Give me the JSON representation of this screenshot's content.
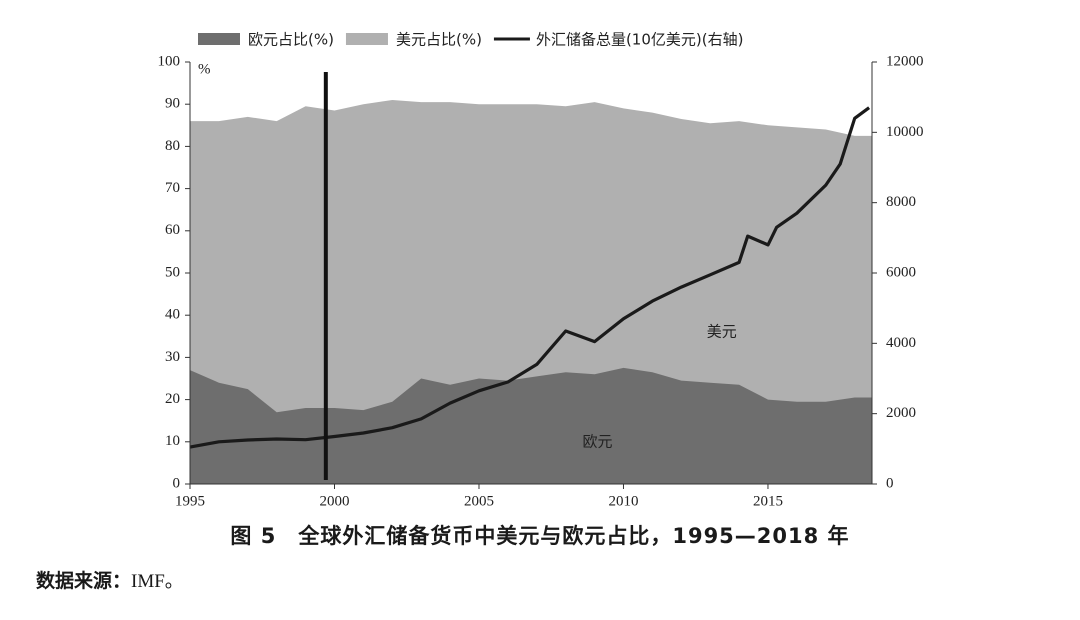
{
  "chart_data": {
    "type": "area",
    "x_ticks": [
      "1995",
      "2000",
      "2005",
      "2010",
      "2015"
    ],
    "y_left_ticks": [
      "0",
      "10",
      "20",
      "30",
      "40",
      "50",
      "60",
      "70",
      "80",
      "90",
      "100"
    ],
    "y_left_unit": "%",
    "y_left_range": [
      0,
      100
    ],
    "y_right_ticks": [
      "0",
      "2000",
      "4000",
      "6000",
      "8000",
      "10000",
      "12000"
    ],
    "y_right_range": [
      0,
      12000
    ],
    "x_range": [
      1995,
      2018.6
    ],
    "legend_position": "top",
    "annotation_vertical_line_x": 1999.7,
    "series": [
      {
        "name": "欧元占比(%)",
        "kind": "area",
        "axis": "left",
        "color": "#6e6e6e",
        "label_in_plot": "欧元",
        "label_in_plot_at": [
          2009.1,
          10
        ],
        "points": [
          [
            1995,
            27
          ],
          [
            1996,
            24
          ],
          [
            1997,
            22.5
          ],
          [
            1998,
            17
          ],
          [
            1999,
            18
          ],
          [
            2000,
            18
          ],
          [
            2001,
            17.5
          ],
          [
            2002,
            19.5
          ],
          [
            2003,
            25
          ],
          [
            2004,
            23.5
          ],
          [
            2005,
            25
          ],
          [
            2006,
            24.5
          ],
          [
            2007,
            25.5
          ],
          [
            2008,
            26.5
          ],
          [
            2009,
            26
          ],
          [
            2010,
            27.5
          ],
          [
            2011,
            26.5
          ],
          [
            2012,
            24.5
          ],
          [
            2013,
            24
          ],
          [
            2014,
            23.5
          ],
          [
            2015,
            20
          ],
          [
            2016,
            19.5
          ],
          [
            2017,
            19.5
          ],
          [
            2018,
            20.5
          ],
          [
            2018.6,
            20.5
          ]
        ]
      },
      {
        "name": "美元占比(%)",
        "kind": "stacked_area_top",
        "axis": "left",
        "color": "#b0b0b0",
        "label_in_plot": "美元",
        "label_in_plot_at": [
          2013.4,
          36
        ],
        "points": [
          [
            1995,
            86
          ],
          [
            1996,
            86
          ],
          [
            1997,
            87
          ],
          [
            1998,
            86
          ],
          [
            1999,
            89.5
          ],
          [
            2000,
            88.5
          ],
          [
            2001,
            90
          ],
          [
            2002,
            91
          ],
          [
            2003,
            90.5
          ],
          [
            2004,
            90.5
          ],
          [
            2005,
            90
          ],
          [
            2006,
            90
          ],
          [
            2007,
            90
          ],
          [
            2008,
            89.5
          ],
          [
            2009,
            90.5
          ],
          [
            2010,
            89
          ],
          [
            2011,
            88
          ],
          [
            2012,
            86.5
          ],
          [
            2013,
            85.5
          ],
          [
            2014,
            86
          ],
          [
            2015,
            85
          ],
          [
            2016,
            84.5
          ],
          [
            2017,
            84
          ],
          [
            2018,
            82.5
          ],
          [
            2018.6,
            82.5
          ]
        ]
      },
      {
        "name": "外汇储备总量(10亿美元)(右轴)",
        "kind": "line",
        "axis": "right",
        "color": "#1a1a1a",
        "points": [
          [
            1995,
            1050
          ],
          [
            1996,
            1200
          ],
          [
            1997,
            1250
          ],
          [
            1998,
            1280
          ],
          [
            1999,
            1260
          ],
          [
            2000,
            1350
          ],
          [
            2001,
            1450
          ],
          [
            2002,
            1600
          ],
          [
            2003,
            1850
          ],
          [
            2004,
            2300
          ],
          [
            2005,
            2650
          ],
          [
            2006,
            2900
          ],
          [
            2007,
            3400
          ],
          [
            2008,
            4350
          ],
          [
            2009,
            4050
          ],
          [
            2010,
            4700
          ],
          [
            2011,
            5200
          ],
          [
            2012,
            5600
          ],
          [
            2013,
            5950
          ],
          [
            2014,
            6300
          ],
          [
            2014.3,
            7050
          ],
          [
            2015,
            6800
          ],
          [
            2015.3,
            7300
          ],
          [
            2016,
            7700
          ],
          [
            2017,
            8500
          ],
          [
            2017.5,
            9100
          ],
          [
            2018,
            10400
          ],
          [
            2018.5,
            10700
          ]
        ]
      }
    ]
  },
  "caption": "图 5　全球外汇储备货币中美元与欧元占比，1995—2018 年",
  "source": {
    "label": "数据来源：",
    "value": "IMF。"
  }
}
